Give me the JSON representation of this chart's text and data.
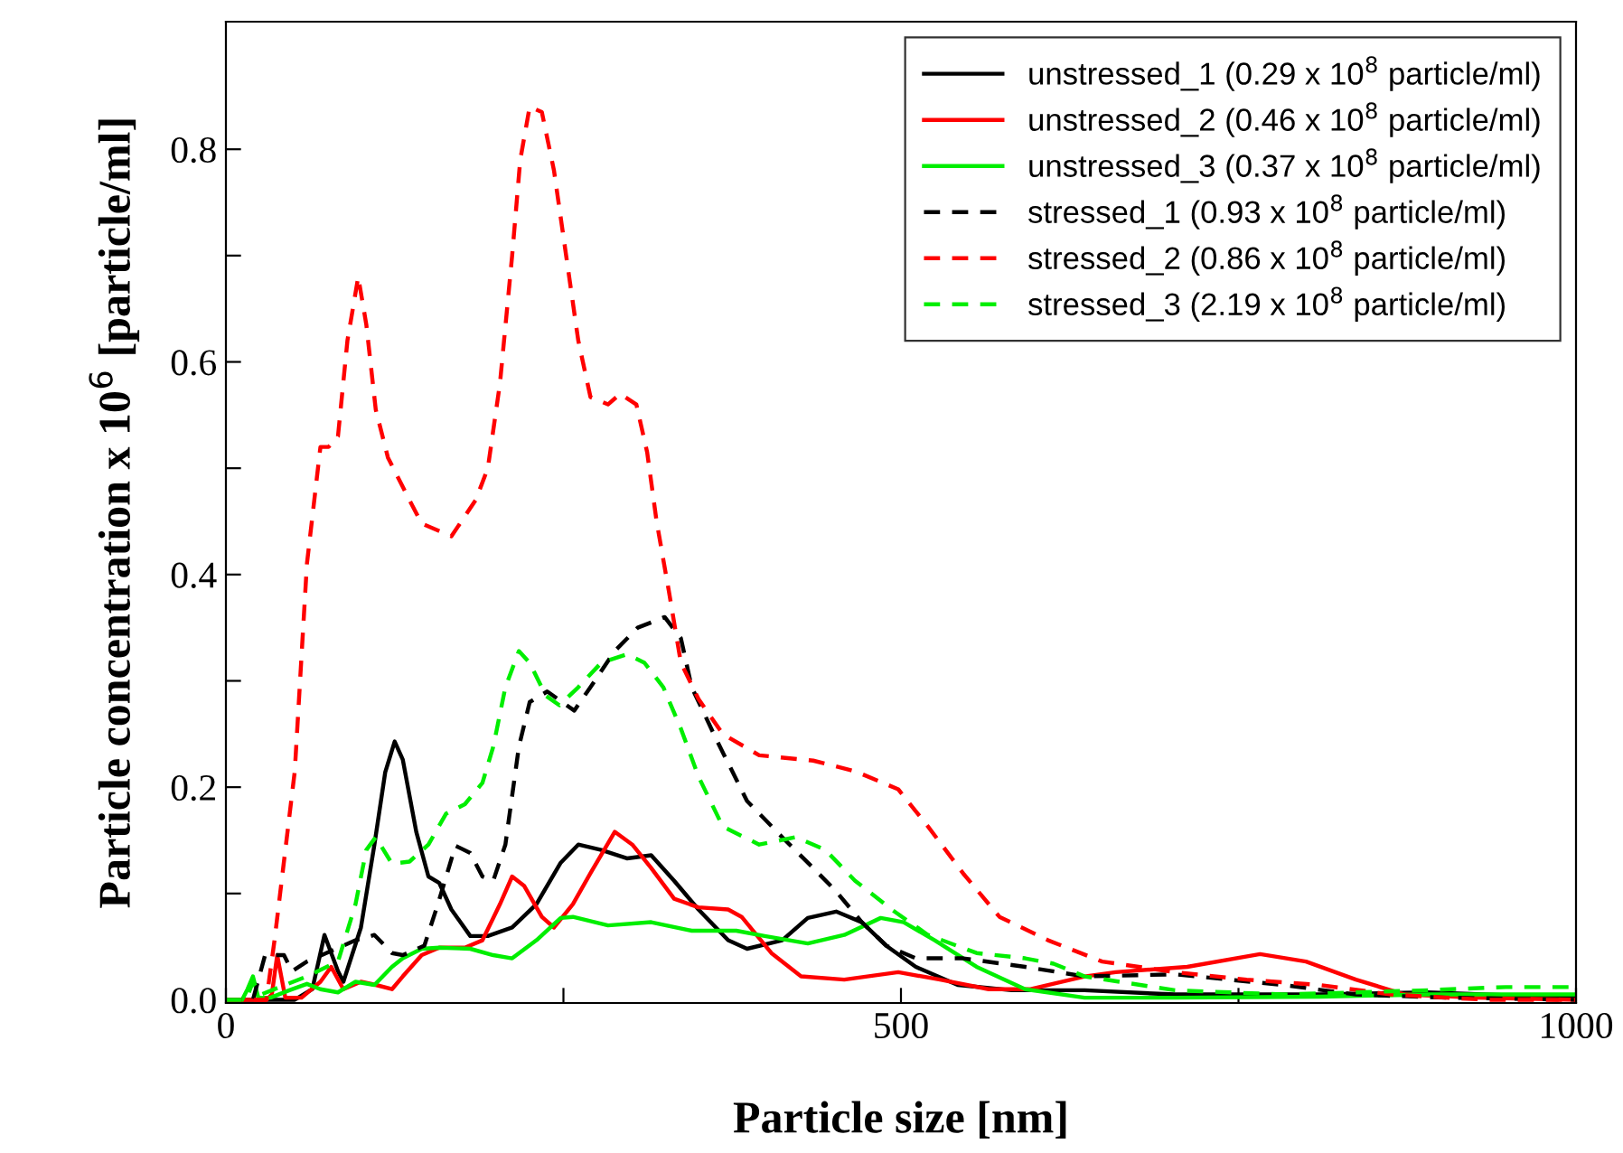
{
  "chart_data": {
    "type": "line",
    "xlabel": "Particle size [nm]",
    "ylabel": "Particle concentration x 10$^{6}$ [particle/ml]",
    "xlim": [
      0,
      1000
    ],
    "xticks": [
      0,
      {
        "value": 250,
        "label": null
      },
      500,
      {
        "value": 750,
        "label": null
      },
      1000
    ],
    "ylim": [
      -0.003,
      0.92
    ],
    "yticks": [
      {
        "value": 0,
        "label": "0.0"
      },
      {
        "value": 0.1,
        "label": null
      },
      0.2,
      {
        "value": 0.3,
        "label": null
      },
      0.4,
      {
        "value": 0.5,
        "label": null
      },
      0.6,
      {
        "value": 0.7,
        "label": null
      },
      0.8
    ],
    "grid": false,
    "legend": "top right",
    "marker": "none",
    "series": [
      {
        "name": "unstressed_1 (0.29 x 10$^{8}$ particle/ml)",
        "color": "#000000",
        "line_style": "solid",
        "x": [
          0,
          40,
          51,
          64,
          73,
          83,
          87,
          100,
          110,
          118,
          125,
          131,
          141,
          150,
          158,
          167,
          181,
          194,
          212,
          230,
          248,
          261,
          278,
          297,
          315,
          332,
          350,
          372,
          386,
          412,
          431,
          452,
          471,
          489,
          511,
          542,
          582,
          636,
          703,
          810,
          890,
          1000
        ],
        "values": [
          0,
          0,
          0,
          0.01,
          0.061,
          0.027,
          0.017,
          0.068,
          0.146,
          0.214,
          0.243,
          0.226,
          0.158,
          0.116,
          0.11,
          0.085,
          0.06,
          0.06,
          0.068,
          0.09,
          0.129,
          0.146,
          0.141,
          0.133,
          0.136,
          0.112,
          0.085,
          0.056,
          0.048,
          0.056,
          0.077,
          0.083,
          0.073,
          0.051,
          0.031,
          0.014,
          0.009,
          0.009,
          0.005,
          0.005,
          0.007,
          0.002
        ]
      },
      {
        "name": "unstressed_2 (0.46 x 10$^{8}$ particle/ml)",
        "color": "#ff0000",
        "line_style": "solid",
        "x": [
          0,
          30,
          34,
          38,
          44,
          56,
          70,
          78,
          87,
          100,
          111,
          123,
          131,
          145,
          158,
          177,
          190,
          203,
          212,
          221,
          234,
          243,
          257,
          270,
          288,
          301,
          315,
          332,
          350,
          372,
          382,
          404,
          426,
          458,
          498,
          529,
          565,
          596,
          636,
          659,
          712,
          766,
          800,
          837,
          873,
          926,
          1000
        ],
        "values": [
          0,
          0,
          0.005,
          0.042,
          0.002,
          0.002,
          0.017,
          0.031,
          0.01,
          0.017,
          0.014,
          0.01,
          0.022,
          0.042,
          0.049,
          0.049,
          0.056,
          0.09,
          0.116,
          0.107,
          0.078,
          0.068,
          0.09,
          0.119,
          0.158,
          0.146,
          0.124,
          0.095,
          0.087,
          0.085,
          0.078,
          0.044,
          0.022,
          0.019,
          0.026,
          0.019,
          0.01,
          0.01,
          0.022,
          0.026,
          0.031,
          0.043,
          0.036,
          0.019,
          0.005,
          0.002,
          0
        ]
      },
      {
        "name": "unstressed_3 (0.37 x 10$^{8}$ particle/ml)",
        "color": "#00ee00",
        "line_style": "solid",
        "x": [
          0,
          12,
          16,
          20,
          24,
          33,
          47,
          60,
          70,
          83,
          96,
          110,
          123,
          131,
          145,
          158,
          181,
          198,
          212,
          230,
          248,
          257,
          283,
          315,
          345,
          378,
          399,
          431,
          458,
          485,
          502,
          525,
          556,
          592,
          636,
          703,
          810,
          890,
          1000
        ],
        "values": [
          0,
          0,
          0.01,
          0.022,
          0.002,
          0.002,
          0.009,
          0.015,
          0.01,
          0.007,
          0.017,
          0.014,
          0.031,
          0.039,
          0.048,
          0.049,
          0.048,
          0.042,
          0.039,
          0.056,
          0.077,
          0.078,
          0.07,
          0.073,
          0.065,
          0.065,
          0.06,
          0.053,
          0.061,
          0.077,
          0.073,
          0.056,
          0.031,
          0.01,
          0.002,
          0.002,
          0.003,
          0.005,
          0.005
        ]
      },
      {
        "name": "stressed_1 (0.93 x 10$^{8}$ particle/ml)",
        "color": "#000000",
        "line_style": "dashed",
        "x": [
          0,
          20,
          29,
          43,
          49,
          60,
          96,
          110,
          123,
          131,
          147,
          157,
          170,
          181,
          190,
          198,
          207,
          217,
          225,
          238,
          258,
          270,
          288,
          305,
          325,
          337,
          345,
          364,
          386,
          412,
          435,
          452,
          471,
          489,
          511,
          546,
          592,
          636,
          703,
          783,
          837,
          904,
          1000
        ],
        "values": [
          0,
          0,
          0.042,
          0.042,
          0.027,
          0.036,
          0.056,
          0.061,
          0.044,
          0.042,
          0.051,
          0.09,
          0.145,
          0.138,
          0.116,
          0.112,
          0.146,
          0.238,
          0.28,
          0.29,
          0.272,
          0.294,
          0.328,
          0.35,
          0.36,
          0.34,
          0.294,
          0.243,
          0.187,
          0.153,
          0.124,
          0.102,
          0.073,
          0.051,
          0.039,
          0.039,
          0.031,
          0.022,
          0.024,
          0.014,
          0.005,
          0.002,
          0
        ]
      },
      {
        "name": "stressed_2 (0.86 x 10$^{8}$ particle/ml)",
        "color": "#ff0000",
        "line_style": "dashed",
        "x": [
          0,
          30,
          36,
          51,
          60,
          70,
          76,
          83,
          90,
          98,
          104,
          111,
          120,
          136,
          145,
          167,
          185,
          194,
          203,
          212,
          218,
          225,
          234,
          243,
          252,
          261,
          270,
          283,
          292,
          304,
          312,
          319,
          328,
          337,
          350,
          368,
          395,
          435,
          466,
          498,
          520,
          546,
          573,
          609,
          649,
          703,
          756,
          810,
          863,
          934,
          1000
        ],
        "values": [
          0,
          0,
          0.056,
          0.215,
          0.41,
          0.52,
          0.52,
          0.53,
          0.62,
          0.68,
          0.635,
          0.555,
          0.51,
          0.47,
          0.448,
          0.436,
          0.47,
          0.5,
          0.58,
          0.7,
          0.79,
          0.84,
          0.835,
          0.78,
          0.7,
          0.62,
          0.567,
          0.56,
          0.57,
          0.56,
          0.515,
          0.45,
          0.385,
          0.317,
          0.283,
          0.25,
          0.23,
          0.225,
          0.215,
          0.198,
          0.163,
          0.119,
          0.078,
          0.056,
          0.036,
          0.026,
          0.019,
          0.014,
          0.005,
          0,
          0
        ]
      },
      {
        "name": "stressed_3 (2.19 x 10$^{8}$ particle/ml)",
        "color": "#00ee00",
        "line_style": "dashed",
        "x": [
          0,
          15,
          20,
          26,
          60,
          83,
          96,
          104,
          111,
          123,
          136,
          150,
          163,
          177,
          190,
          198,
          207,
          217,
          225,
          237,
          247,
          261,
          278,
          297,
          310,
          324,
          337,
          350,
          368,
          395,
          422,
          444,
          466,
          493,
          520,
          556,
          592,
          613,
          636,
          703,
          783,
          890,
          948,
          1000
        ],
        "values": [
          0,
          0,
          0.017,
          0.005,
          0.022,
          0.036,
          0.09,
          0.141,
          0.153,
          0.128,
          0.13,
          0.146,
          0.175,
          0.184,
          0.204,
          0.238,
          0.294,
          0.328,
          0.317,
          0.286,
          0.277,
          0.294,
          0.317,
          0.325,
          0.317,
          0.294,
          0.255,
          0.21,
          0.163,
          0.146,
          0.153,
          0.141,
          0.112,
          0.085,
          0.061,
          0.044,
          0.039,
          0.034,
          0.022,
          0.009,
          0.005,
          0.009,
          0.012,
          0.012
        ]
      }
    ]
  }
}
